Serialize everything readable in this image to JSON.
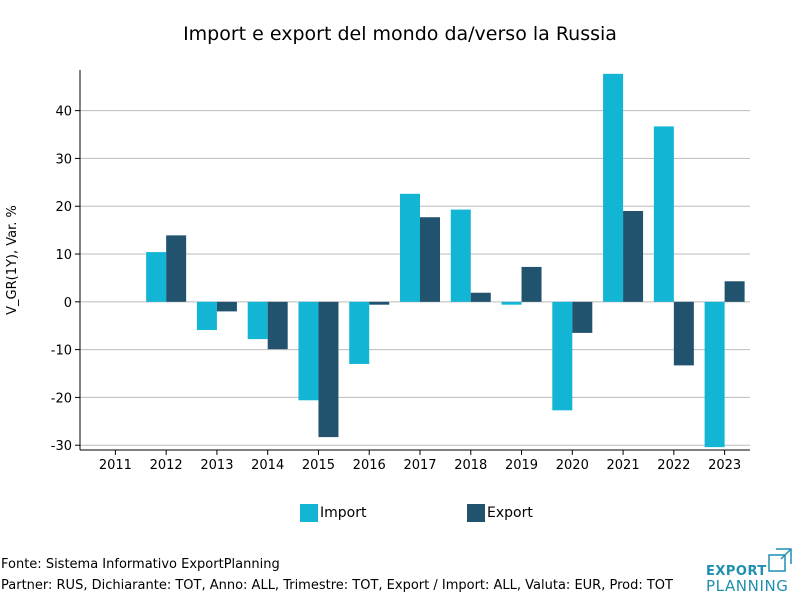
{
  "chart_data": {
    "type": "bar",
    "title": "Import e export del mondo da/verso la Russia",
    "xlabel": "",
    "ylabel": "V_GR(1Y), Var. %",
    "categories": [
      "2011",
      "2012",
      "2013",
      "2014",
      "2015",
      "2016",
      "2017",
      "2018",
      "2019",
      "2020",
      "2021",
      "2022",
      "2023"
    ],
    "series": [
      {
        "name": "Import",
        "color": "#12b5d3",
        "values": [
          null,
          10.4,
          -5.9,
          -7.8,
          -20.6,
          -13.0,
          22.6,
          19.3,
          -0.6,
          -22.7,
          47.7,
          36.7,
          -30.4
        ]
      },
      {
        "name": "Export",
        "color": "#22536e",
        "values": [
          null,
          13.9,
          -2.0,
          -9.9,
          -28.3,
          -0.6,
          17.7,
          1.9,
          7.3,
          -6.5,
          19.0,
          -13.3,
          4.3
        ]
      }
    ],
    "ylim": [
      -31,
      48.5
    ],
    "yticks": [
      -30,
      -20,
      -10,
      0,
      10,
      20,
      30,
      40
    ],
    "grid": "horizontal",
    "legend_position": "bottom"
  },
  "footer": {
    "source": "Fonte: Sistema Informativo ExportPlanning",
    "params": "Partner: RUS, Dichiarante: TOT, Anno: ALL, Trimestre: TOT, Export / Import: ALL, Valuta: EUR, Prod: TOT"
  },
  "logo": {
    "line1": "EXPORT",
    "line2": "PLANNING",
    "color": "#1f8fb0"
  }
}
